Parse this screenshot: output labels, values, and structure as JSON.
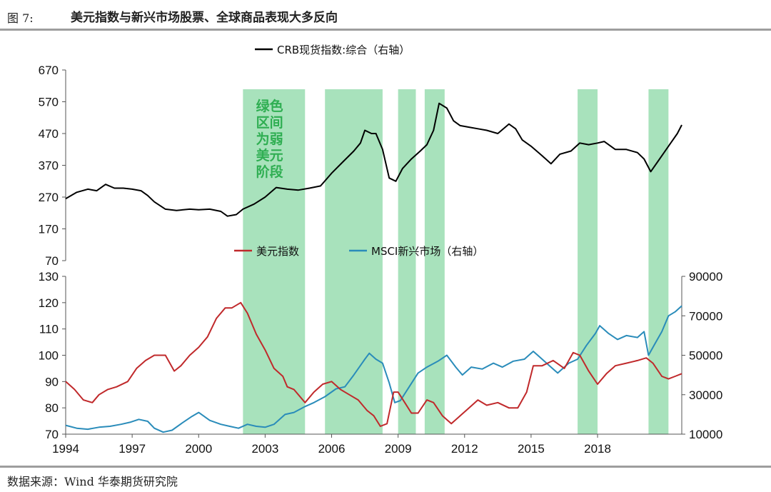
{
  "header": {
    "figure_label": "图 7:",
    "title": "美元指数与新兴市场股票、全球商品表现大多反向"
  },
  "footer": {
    "source": "数据来源：Wind 华泰期货研究院"
  },
  "colors": {
    "crb": "#000000",
    "dxy": "#c0292b",
    "msci": "#2a8cba",
    "band": "#a8e2bc",
    "band_text": "#2fae52"
  },
  "chart_data": [
    {
      "type": "line",
      "x_range": [
        1994.0,
        2021.8
      ],
      "ylim": [
        70,
        670
      ],
      "yticks": [
        "70",
        "170",
        "270",
        "370",
        "470",
        "570",
        "670"
      ],
      "y_axis_position": "left",
      "grid": false,
      "legend": "top-center",
      "band_note": [
        "绿色",
        "区间",
        "为弱",
        "美元",
        "阶段"
      ],
      "series": [
        {
          "name": "CRB现货指数:综合（右轴）",
          "color": "#000000",
          "points": [
            [
              1994.0,
              265
            ],
            [
              1994.5,
              285
            ],
            [
              1995.0,
              295
            ],
            [
              1995.4,
              290
            ],
            [
              1995.8,
              310
            ],
            [
              1996.2,
              298
            ],
            [
              1996.6,
              298
            ],
            [
              1997.0,
              295
            ],
            [
              1997.4,
              290
            ],
            [
              1997.7,
              275
            ],
            [
              1998.0,
              255
            ],
            [
              1998.5,
              232
            ],
            [
              1999.0,
              228
            ],
            [
              1999.6,
              232
            ],
            [
              2000.0,
              230
            ],
            [
              2000.5,
              232
            ],
            [
              2001.0,
              225
            ],
            [
              2001.3,
              210
            ],
            [
              2001.7,
              215
            ],
            [
              2002.0,
              232
            ],
            [
              2002.5,
              248
            ],
            [
              2003.0,
              270
            ],
            [
              2003.5,
              300
            ],
            [
              2004.0,
              295
            ],
            [
              2004.5,
              292
            ],
            [
              2005.0,
              298
            ],
            [
              2005.5,
              305
            ],
            [
              2006.0,
              345
            ],
            [
              2006.5,
              380
            ],
            [
              2007.0,
              415
            ],
            [
              2007.3,
              440
            ],
            [
              2007.5,
              480
            ],
            [
              2007.8,
              470
            ],
            [
              2008.0,
              470
            ],
            [
              2008.3,
              420
            ],
            [
              2008.6,
              330
            ],
            [
              2008.9,
              320
            ],
            [
              2009.2,
              360
            ],
            [
              2009.6,
              390
            ],
            [
              2010.0,
              415
            ],
            [
              2010.3,
              435
            ],
            [
              2010.6,
              480
            ],
            [
              2010.85,
              565
            ],
            [
              2011.2,
              550
            ],
            [
              2011.5,
              510
            ],
            [
              2011.8,
              495
            ],
            [
              2012.2,
              490
            ],
            [
              2012.6,
              485
            ],
            [
              2013.0,
              480
            ],
            [
              2013.5,
              470
            ],
            [
              2014.0,
              500
            ],
            [
              2014.3,
              485
            ],
            [
              2014.6,
              450
            ],
            [
              2015.0,
              430
            ],
            [
              2015.5,
              400
            ],
            [
              2015.9,
              375
            ],
            [
              2016.3,
              405
            ],
            [
              2016.8,
              415
            ],
            [
              2017.2,
              440
            ],
            [
              2017.6,
              435
            ],
            [
              2018.0,
              440
            ],
            [
              2018.3,
              445
            ],
            [
              2018.8,
              420
            ],
            [
              2019.3,
              420
            ],
            [
              2019.8,
              410
            ],
            [
              2020.1,
              390
            ],
            [
              2020.4,
              350
            ],
            [
              2020.7,
              380
            ],
            [
              2021.0,
              410
            ],
            [
              2021.3,
              440
            ],
            [
              2021.6,
              470
            ],
            [
              2021.8,
              497
            ]
          ]
        }
      ]
    },
    {
      "type": "line",
      "x_range": [
        1994.0,
        2021.8
      ],
      "xticks": [
        "1994",
        "1997",
        "2000",
        "2003",
        "2006",
        "2009",
        "2012",
        "2015",
        "2018"
      ],
      "ylim": [
        70,
        130
      ],
      "yticks": [
        "70",
        "80",
        "90",
        "100",
        "110",
        "120",
        "130"
      ],
      "y2lim": [
        10000,
        90000
      ],
      "y2ticks": [
        "10000",
        "30000",
        "50000",
        "70000",
        "90000"
      ],
      "grid": false,
      "legend": "top-center",
      "series": [
        {
          "name": "美元指数",
          "color": "#c0292b",
          "axis": "left",
          "points": [
            [
              1994.0,
              90
            ],
            [
              1994.4,
              87
            ],
            [
              1994.8,
              83
            ],
            [
              1995.2,
              82
            ],
            [
              1995.5,
              85
            ],
            [
              1995.9,
              87
            ],
            [
              1996.3,
              88
            ],
            [
              1996.8,
              90
            ],
            [
              1997.2,
              95
            ],
            [
              1997.6,
              98
            ],
            [
              1998.0,
              100
            ],
            [
              1998.5,
              100
            ],
            [
              1998.9,
              94
            ],
            [
              1999.2,
              96
            ],
            [
              1999.6,
              100
            ],
            [
              2000.0,
              103
            ],
            [
              2000.4,
              107
            ],
            [
              2000.8,
              114
            ],
            [
              2001.2,
              118
            ],
            [
              2001.5,
              118
            ],
            [
              2001.9,
              120
            ],
            [
              2002.2,
              116
            ],
            [
              2002.6,
              108
            ],
            [
              2003.0,
              102
            ],
            [
              2003.4,
              95
            ],
            [
              2003.8,
              92
            ],
            [
              2004.0,
              88
            ],
            [
              2004.3,
              87
            ],
            [
              2004.8,
              82
            ],
            [
              2005.2,
              86
            ],
            [
              2005.6,
              89
            ],
            [
              2006.0,
              90
            ],
            [
              2006.4,
              87
            ],
            [
              2006.8,
              85
            ],
            [
              2007.2,
              83
            ],
            [
              2007.6,
              79
            ],
            [
              2007.9,
              77
            ],
            [
              2008.2,
              73
            ],
            [
              2008.5,
              74
            ],
            [
              2008.8,
              86
            ],
            [
              2009.0,
              86
            ],
            [
              2009.3,
              82
            ],
            [
              2009.6,
              78
            ],
            [
              2009.9,
              78
            ],
            [
              2010.3,
              83
            ],
            [
              2010.6,
              82
            ],
            [
              2011.0,
              77
            ],
            [
              2011.4,
              74
            ],
            [
              2011.8,
              77
            ],
            [
              2012.2,
              80
            ],
            [
              2012.6,
              83
            ],
            [
              2013.0,
              81
            ],
            [
              2013.5,
              82
            ],
            [
              2014.0,
              80
            ],
            [
              2014.4,
              80
            ],
            [
              2014.8,
              86
            ],
            [
              2015.1,
              96
            ],
            [
              2015.5,
              96
            ],
            [
              2016.0,
              98
            ],
            [
              2016.5,
              95
            ],
            [
              2016.9,
              101
            ],
            [
              2017.2,
              100
            ],
            [
              2017.6,
              94
            ],
            [
              2018.0,
              89
            ],
            [
              2018.4,
              93
            ],
            [
              2018.8,
              96
            ],
            [
              2019.3,
              97
            ],
            [
              2019.8,
              98
            ],
            [
              2020.2,
              99
            ],
            [
              2020.5,
              97
            ],
            [
              2020.9,
              92
            ],
            [
              2021.2,
              91
            ],
            [
              2021.5,
              92
            ],
            [
              2021.8,
              93
            ]
          ]
        },
        {
          "name": "MSCI新兴市场（右轴）",
          "color": "#2a8cba",
          "axis": "right",
          "points": [
            [
              1994.0,
              14500
            ],
            [
              1994.5,
              13000
            ],
            [
              1995.0,
              12500
            ],
            [
              1995.5,
              13500
            ],
            [
              1996.0,
              14000
            ],
            [
              1996.5,
              15000
            ],
            [
              1996.9,
              16000
            ],
            [
              1997.3,
              17500
            ],
            [
              1997.7,
              16500
            ],
            [
              1998.0,
              13000
            ],
            [
              1998.4,
              11000
            ],
            [
              1998.8,
              12000
            ],
            [
              1999.3,
              16000
            ],
            [
              1999.7,
              19000
            ],
            [
              2000.0,
              21000
            ],
            [
              2000.5,
              17000
            ],
            [
              2001.0,
              15000
            ],
            [
              2001.4,
              14000
            ],
            [
              2001.8,
              13000
            ],
            [
              2002.2,
              15000
            ],
            [
              2002.6,
              14000
            ],
            [
              2003.0,
              13500
            ],
            [
              2003.4,
              15000
            ],
            [
              2003.9,
              20000
            ],
            [
              2004.3,
              21000
            ],
            [
              2004.8,
              24000
            ],
            [
              2005.2,
              26000
            ],
            [
              2005.7,
              29000
            ],
            [
              2006.2,
              33000
            ],
            [
              2006.6,
              34000
            ],
            [
              2007.0,
              40000
            ],
            [
              2007.5,
              48000
            ],
            [
              2007.7,
              51000
            ],
            [
              2008.0,
              48000
            ],
            [
              2008.3,
              46000
            ],
            [
              2008.6,
              36000
            ],
            [
              2008.85,
              26000
            ],
            [
              2009.1,
              27000
            ],
            [
              2009.5,
              34000
            ],
            [
              2009.9,
              41000
            ],
            [
              2010.3,
              44000
            ],
            [
              2010.8,
              47000
            ],
            [
              2011.2,
              50000
            ],
            [
              2011.6,
              44000
            ],
            [
              2011.9,
              40000
            ],
            [
              2012.3,
              44000
            ],
            [
              2012.8,
              43000
            ],
            [
              2013.3,
              46000
            ],
            [
              2013.7,
              44000
            ],
            [
              2014.2,
              47000
            ],
            [
              2014.7,
              48000
            ],
            [
              2015.1,
              52000
            ],
            [
              2015.5,
              48000
            ],
            [
              2015.9,
              44000
            ],
            [
              2016.2,
              41000
            ],
            [
              2016.7,
              46000
            ],
            [
              2017.1,
              48000
            ],
            [
              2017.5,
              55000
            ],
            [
              2017.9,
              61000
            ],
            [
              2018.1,
              65000
            ],
            [
              2018.5,
              61000
            ],
            [
              2018.9,
              58000
            ],
            [
              2019.3,
              60000
            ],
            [
              2019.8,
              59000
            ],
            [
              2020.1,
              62000
            ],
            [
              2020.3,
              50000
            ],
            [
              2020.6,
              56000
            ],
            [
              2020.9,
              62000
            ],
            [
              2021.2,
              70000
            ],
            [
              2021.5,
              72000
            ],
            [
              2021.8,
              75000
            ]
          ]
        }
      ],
      "bands": [
        [
          2002.0,
          2004.8
        ],
        [
          2005.7,
          2008.3
        ],
        [
          2009.0,
          2009.8
        ],
        [
          2010.2,
          2011.1
        ],
        [
          2017.1,
          2018.0
        ],
        [
          2020.3,
          2021.2
        ]
      ]
    }
  ],
  "chart_text": {
    "top_legend": "CRB现货指数:综合（右轴）",
    "bottom_legend_dxy": "美元指数",
    "bottom_legend_msci": "MSCI新兴市场（右轴）"
  }
}
